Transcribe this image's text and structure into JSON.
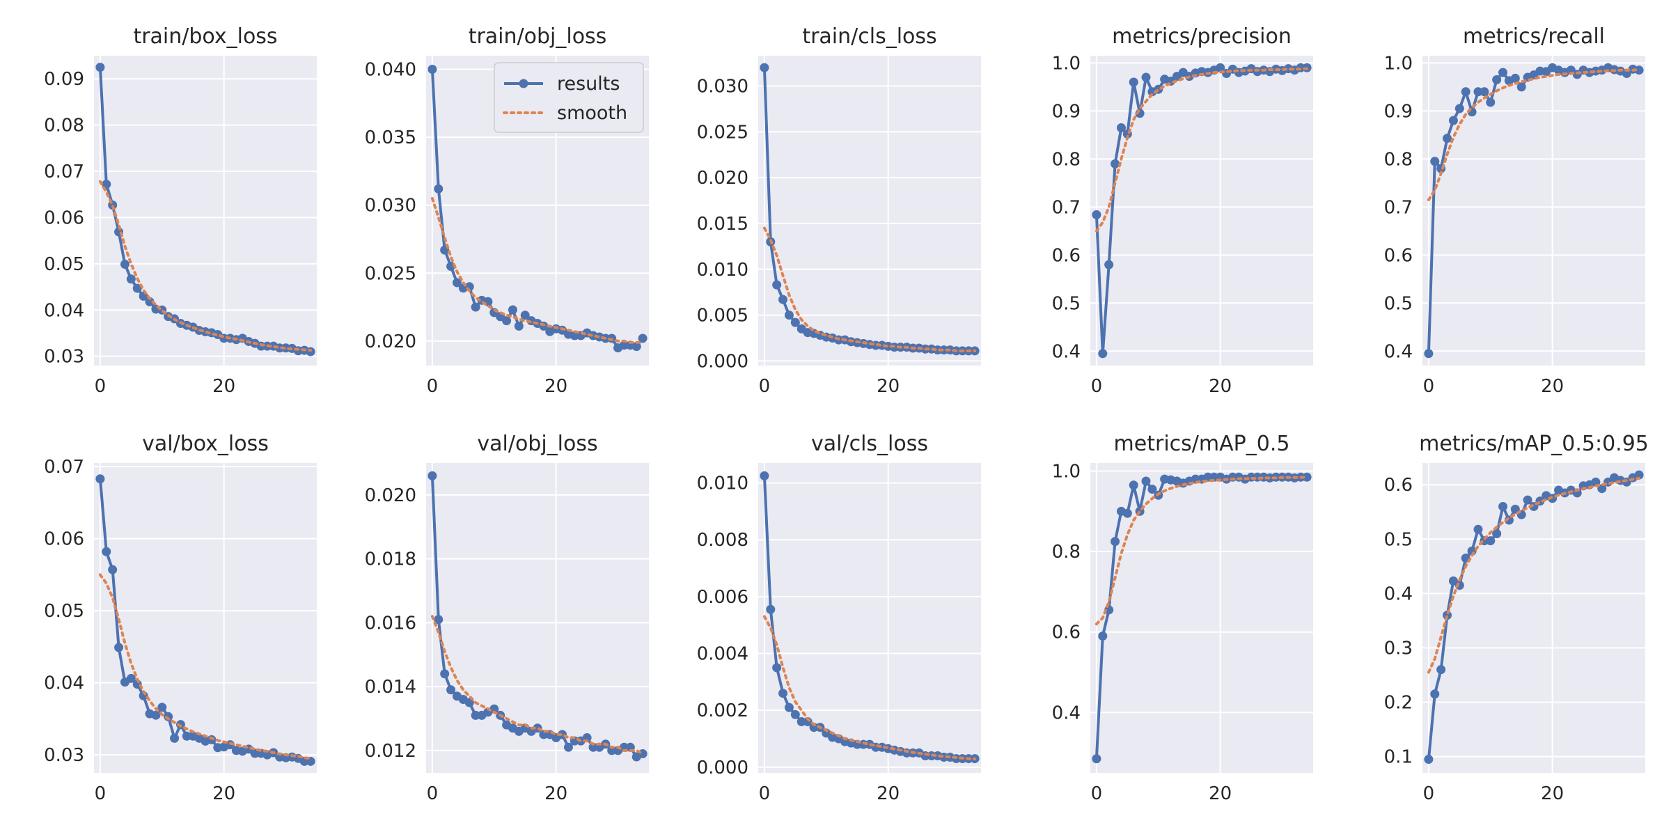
{
  "chart_data": [
    {
      "type": "line",
      "title": "train/box_loss",
      "xlim": [
        -1,
        35
      ],
      "ylim": [
        0.028,
        0.095
      ],
      "xticks": [
        0,
        20
      ],
      "yticks": [
        0.03,
        0.04,
        0.05,
        0.06,
        0.07,
        0.08,
        0.09
      ],
      "tick_format": "2",
      "series": [
        {
          "name": "results",
          "values": [
            0.0925,
            0.0672,
            0.0627,
            0.0569,
            0.0499,
            0.0467,
            0.0447,
            0.043,
            0.0418,
            0.0402,
            0.04,
            0.0386,
            0.0381,
            0.0371,
            0.0367,
            0.0363,
            0.0356,
            0.0353,
            0.0351,
            0.0347,
            0.0339,
            0.0339,
            0.0336,
            0.0339,
            0.0332,
            0.0328,
            0.0322,
            0.0322,
            0.0322,
            0.0318,
            0.0318,
            0.0317,
            0.0312,
            0.0313,
            0.031
          ]
        },
        {
          "name": "smooth",
          "values": [
            0.0678,
            0.0655,
            0.0626,
            0.0584,
            0.0538,
            0.05,
            0.0468,
            0.0443,
            0.0425,
            0.0411,
            0.0399,
            0.0389,
            0.038,
            0.0373,
            0.0367,
            0.0362,
            0.0357,
            0.0353,
            0.0349,
            0.0346,
            0.0342,
            0.0339,
            0.0337,
            0.0334,
            0.0331,
            0.0328,
            0.0325,
            0.0323,
            0.0321,
            0.0319,
            0.0317,
            0.0316,
            0.0315,
            0.0314,
            0.0313
          ]
        }
      ]
    },
    {
      "type": "line",
      "title": "train/obj_loss",
      "xlim": [
        -1,
        35
      ],
      "ylim": [
        0.0182,
        0.041
      ],
      "xticks": [
        0,
        20
      ],
      "yticks": [
        0.02,
        0.025,
        0.03,
        0.035,
        0.04
      ],
      "tick_format": "3",
      "legend": {
        "placement": "top-right",
        "entries": [
          "results",
          "smooth"
        ]
      },
      "series": [
        {
          "name": "results",
          "values": [
            0.04,
            0.0312,
            0.0267,
            0.0255,
            0.0243,
            0.0239,
            0.024,
            0.0225,
            0.023,
            0.0229,
            0.0221,
            0.0218,
            0.0215,
            0.0223,
            0.0211,
            0.0219,
            0.0215,
            0.0213,
            0.0211,
            0.0207,
            0.0209,
            0.0208,
            0.0205,
            0.0204,
            0.0204,
            0.0206,
            0.0204,
            0.0203,
            0.0202,
            0.0202,
            0.0195,
            0.0197,
            0.0197,
            0.0196,
            0.0202
          ]
        },
        {
          "name": "smooth",
          "values": [
            0.0305,
            0.0291,
            0.0276,
            0.0262,
            0.0251,
            0.0243,
            0.0237,
            0.0232,
            0.0229,
            0.0226,
            0.0223,
            0.0221,
            0.0219,
            0.0218,
            0.0216,
            0.0215,
            0.0214,
            0.0213,
            0.0212,
            0.0211,
            0.021,
            0.0209,
            0.0208,
            0.0207,
            0.0206,
            0.0205,
            0.0204,
            0.0203,
            0.0202,
            0.0201,
            0.02,
            0.02,
            0.0199,
            0.0199,
            0.0199
          ]
        }
      ]
    },
    {
      "type": "line",
      "title": "train/cls_loss",
      "xlim": [
        -1,
        35
      ],
      "ylim": [
        -0.0005,
        0.0333
      ],
      "xticks": [
        0,
        20
      ],
      "yticks": [
        0,
        0.005,
        0.01,
        0.015,
        0.02,
        0.025,
        0.03
      ],
      "tick_format": "3",
      "series": [
        {
          "name": "results",
          "values": [
            0.032,
            0.013,
            0.0083,
            0.0067,
            0.005,
            0.0042,
            0.0035,
            0.0031,
            0.003,
            0.0028,
            0.0026,
            0.0025,
            0.0023,
            0.0023,
            0.0021,
            0.002,
            0.0019,
            0.0018,
            0.0017,
            0.0017,
            0.0016,
            0.0015,
            0.0015,
            0.0015,
            0.0014,
            0.0014,
            0.0013,
            0.0013,
            0.0012,
            0.0012,
            0.0012,
            0.0011,
            0.0011,
            0.0011,
            0.0011
          ]
        },
        {
          "name": "smooth",
          "values": [
            0.0145,
            0.0132,
            0.0115,
            0.0093,
            0.0072,
            0.0056,
            0.0045,
            0.0038,
            0.0033,
            0.003,
            0.0028,
            0.0026,
            0.0024,
            0.0023,
            0.0022,
            0.0021,
            0.002,
            0.0019,
            0.0018,
            0.0017,
            0.0016,
            0.0016,
            0.0015,
            0.0015,
            0.0014,
            0.0014,
            0.0013,
            0.0013,
            0.0012,
            0.0012,
            0.0012,
            0.0011,
            0.0011,
            0.0011,
            0.0011
          ]
        }
      ]
    },
    {
      "type": "line",
      "title": "metrics/precision",
      "xlim": [
        -1,
        35
      ],
      "ylim": [
        0.37,
        1.015
      ],
      "xticks": [
        0,
        20
      ],
      "yticks": [
        0.4,
        0.5,
        0.6,
        0.7,
        0.8,
        0.9,
        1.0
      ],
      "tick_format": "1",
      "series": [
        {
          "name": "results",
          "values": [
            0.684,
            0.395,
            0.58,
            0.79,
            0.865,
            0.852,
            0.96,
            0.895,
            0.97,
            0.94,
            0.945,
            0.966,
            0.962,
            0.972,
            0.98,
            0.972,
            0.979,
            0.982,
            0.98,
            0.985,
            0.99,
            0.978,
            0.987,
            0.98,
            0.983,
            0.988,
            0.982,
            0.985,
            0.982,
            0.987,
            0.984,
            0.988,
            0.985,
            0.99,
            0.99
          ]
        },
        {
          "name": "smooth",
          "values": [
            0.65,
            0.668,
            0.7,
            0.75,
            0.8,
            0.845,
            0.882,
            0.905,
            0.92,
            0.935,
            0.944,
            0.952,
            0.958,
            0.963,
            0.967,
            0.971,
            0.974,
            0.976,
            0.978,
            0.98,
            0.981,
            0.982,
            0.983,
            0.984,
            0.984,
            0.985,
            0.985,
            0.985,
            0.986,
            0.986,
            0.986,
            0.987,
            0.987,
            0.987,
            0.988
          ]
        }
      ]
    },
    {
      "type": "line",
      "title": "metrics/recall",
      "xlim": [
        -1,
        35
      ],
      "ylim": [
        0.37,
        1.015
      ],
      "xticks": [
        0,
        20
      ],
      "yticks": [
        0.4,
        0.5,
        0.6,
        0.7,
        0.8,
        0.9,
        1.0
      ],
      "tick_format": "1",
      "series": [
        {
          "name": "results",
          "values": [
            0.395,
            0.795,
            0.78,
            0.843,
            0.88,
            0.905,
            0.94,
            0.898,
            0.94,
            0.94,
            0.918,
            0.965,
            0.98,
            0.963,
            0.968,
            0.95,
            0.97,
            0.975,
            0.983,
            0.982,
            0.99,
            0.985,
            0.98,
            0.985,
            0.976,
            0.985,
            0.98,
            0.983,
            0.985,
            0.99,
            0.986,
            0.983,
            0.978,
            0.987,
            0.985
          ]
        },
        {
          "name": "smooth",
          "values": [
            0.715,
            0.735,
            0.77,
            0.81,
            0.845,
            0.872,
            0.893,
            0.907,
            0.918,
            0.927,
            0.935,
            0.942,
            0.948,
            0.953,
            0.957,
            0.961,
            0.964,
            0.967,
            0.97,
            0.972,
            0.974,
            0.976,
            0.977,
            0.978,
            0.979,
            0.98,
            0.981,
            0.982,
            0.983,
            0.984,
            0.984,
            0.985,
            0.985,
            0.985,
            0.986
          ]
        }
      ]
    },
    {
      "type": "line",
      "title": "val/box_loss",
      "xlim": [
        -1,
        35
      ],
      "ylim": [
        0.0275,
        0.0705
      ],
      "xticks": [
        0,
        20
      ],
      "yticks": [
        0.03,
        0.04,
        0.05,
        0.06,
        0.07
      ],
      "tick_format": "2",
      "series": [
        {
          "name": "results",
          "values": [
            0.0683,
            0.0582,
            0.0557,
            0.0449,
            0.0401,
            0.0406,
            0.0398,
            0.0382,
            0.0357,
            0.0355,
            0.0366,
            0.0353,
            0.0323,
            0.0342,
            0.0326,
            0.0326,
            0.0323,
            0.0319,
            0.0321,
            0.031,
            0.0311,
            0.0314,
            0.0306,
            0.0305,
            0.0308,
            0.0302,
            0.0302,
            0.03,
            0.0303,
            0.0297,
            0.0296,
            0.0297,
            0.0295,
            0.0291,
            0.0291
          ]
        },
        {
          "name": "smooth",
          "values": [
            0.055,
            0.0538,
            0.0518,
            0.0488,
            0.0455,
            0.0427,
            0.0405,
            0.0388,
            0.0375,
            0.0364,
            0.0356,
            0.035,
            0.0345,
            0.034,
            0.0336,
            0.0332,
            0.0329,
            0.0326,
            0.0323,
            0.032,
            0.0318,
            0.0316,
            0.0314,
            0.0312,
            0.031,
            0.0308,
            0.0306,
            0.0305,
            0.0303,
            0.0301,
            0.03,
            0.0299,
            0.0298,
            0.0296,
            0.0295
          ]
        }
      ]
    },
    {
      "type": "line",
      "title": "val/obj_loss",
      "xlim": [
        -1,
        35
      ],
      "ylim": [
        0.0113,
        0.021
      ],
      "xticks": [
        0,
        20
      ],
      "yticks": [
        0.012,
        0.014,
        0.016,
        0.018,
        0.02
      ],
      "tick_format": "3",
      "series": [
        {
          "name": "results",
          "values": [
            0.0206,
            0.0161,
            0.0144,
            0.0139,
            0.0137,
            0.0136,
            0.0135,
            0.0131,
            0.0131,
            0.0132,
            0.0133,
            0.0131,
            0.0128,
            0.0127,
            0.0126,
            0.0127,
            0.0126,
            0.0127,
            0.0125,
            0.0125,
            0.0124,
            0.0125,
            0.0121,
            0.0123,
            0.0123,
            0.0124,
            0.0121,
            0.0121,
            0.0122,
            0.012,
            0.012,
            0.0121,
            0.0121,
            0.0118,
            0.0119
          ]
        },
        {
          "name": "smooth",
          "values": [
            0.0162,
            0.0157,
            0.0151,
            0.0146,
            0.0142,
            0.0139,
            0.0137,
            0.0135,
            0.0134,
            0.0133,
            0.0132,
            0.0131,
            0.013,
            0.0129,
            0.0128,
            0.0128,
            0.0127,
            0.0127,
            0.0126,
            0.0126,
            0.0125,
            0.0125,
            0.0124,
            0.0124,
            0.0123,
            0.0123,
            0.0122,
            0.0122,
            0.0122,
            0.0121,
            0.0121,
            0.012,
            0.012,
            0.012,
            0.0119
          ]
        }
      ]
    },
    {
      "type": "line",
      "title": "val/cls_loss",
      "xlim": [
        -1,
        35
      ],
      "ylim": [
        -0.0002,
        0.0107
      ],
      "xticks": [
        0,
        20
      ],
      "yticks": [
        0,
        0.002,
        0.004,
        0.006,
        0.008,
        0.01
      ],
      "tick_format": "3",
      "series": [
        {
          "name": "results",
          "values": [
            0.01025,
            0.00555,
            0.0035,
            0.0026,
            0.0021,
            0.00185,
            0.0016,
            0.0016,
            0.0014,
            0.0014,
            0.0012,
            0.00105,
            0.001,
            0.0009,
            0.00085,
            0.0008,
            0.0008,
            0.0008,
            0.0007,
            0.0007,
            0.00065,
            0.0006,
            0.00055,
            0.0005,
            0.0005,
            0.0005,
            0.0004,
            0.0004,
            0.0004,
            0.00035,
            0.00035,
            0.0003,
            0.0003,
            0.0003,
            0.0003
          ]
        },
        {
          "name": "smooth",
          "values": [
            0.0053,
            0.0049,
            0.0043,
            0.0035,
            0.0028,
            0.0023,
            0.002,
            0.0017,
            0.0015,
            0.0014,
            0.0013,
            0.0012,
            0.0011,
            0.001,
            0.00095,
            0.0009,
            0.00085,
            0.0008,
            0.00076,
            0.00072,
            0.00068,
            0.00064,
            0.0006,
            0.00056,
            0.00052,
            0.00049,
            0.00046,
            0.00043,
            0.0004,
            0.00038,
            0.00036,
            0.00034,
            0.00032,
            0.0003,
            0.00029
          ]
        }
      ]
    },
    {
      "type": "line",
      "title": "metrics/mAP_0.5",
      "xlim": [
        -1,
        35
      ],
      "ylim": [
        0.25,
        1.02
      ],
      "xticks": [
        0,
        20
      ],
      "yticks": [
        0.4,
        0.6,
        0.8,
        1.0
      ],
      "tick_format": "1",
      "series": [
        {
          "name": "results",
          "values": [
            0.285,
            0.59,
            0.655,
            0.825,
            0.9,
            0.895,
            0.965,
            0.9,
            0.975,
            0.955,
            0.94,
            0.98,
            0.978,
            0.975,
            0.97,
            0.975,
            0.98,
            0.98,
            0.985,
            0.985,
            0.985,
            0.98,
            0.985,
            0.985,
            0.98,
            0.985,
            0.985,
            0.985,
            0.983,
            0.985,
            0.985,
            0.985,
            0.983,
            0.985,
            0.985
          ]
        },
        {
          "name": "smooth",
          "values": [
            0.62,
            0.635,
            0.675,
            0.735,
            0.795,
            0.842,
            0.878,
            0.9,
            0.918,
            0.932,
            0.943,
            0.951,
            0.957,
            0.962,
            0.966,
            0.969,
            0.972,
            0.974,
            0.976,
            0.977,
            0.978,
            0.979,
            0.98,
            0.981,
            0.981,
            0.982,
            0.982,
            0.983,
            0.983,
            0.983,
            0.984,
            0.984,
            0.984,
            0.984,
            0.985
          ]
        }
      ]
    },
    {
      "type": "line",
      "title": "metrics/mAP_0.5:0.95",
      "xlim": [
        -1,
        35
      ],
      "ylim": [
        0.07,
        0.64
      ],
      "xticks": [
        0,
        20
      ],
      "yticks": [
        0.1,
        0.2,
        0.3,
        0.4,
        0.5,
        0.6
      ],
      "tick_format": "1",
      "series": [
        {
          "name": "results",
          "values": [
            0.095,
            0.215,
            0.26,
            0.36,
            0.423,
            0.415,
            0.465,
            0.478,
            0.518,
            0.497,
            0.497,
            0.51,
            0.56,
            0.535,
            0.555,
            0.545,
            0.572,
            0.56,
            0.57,
            0.58,
            0.575,
            0.59,
            0.585,
            0.59,
            0.585,
            0.598,
            0.6,
            0.605,
            0.593,
            0.605,
            0.613,
            0.608,
            0.605,
            0.613,
            0.618
          ]
        },
        {
          "name": "smooth",
          "values": [
            0.255,
            0.28,
            0.32,
            0.36,
            0.395,
            0.425,
            0.45,
            0.47,
            0.487,
            0.5,
            0.512,
            0.522,
            0.531,
            0.539,
            0.546,
            0.552,
            0.558,
            0.563,
            0.568,
            0.573,
            0.577,
            0.581,
            0.584,
            0.587,
            0.59,
            0.593,
            0.595,
            0.598,
            0.6,
            0.602,
            0.604,
            0.606,
            0.608,
            0.61,
            0.612
          ]
        }
      ]
    }
  ]
}
